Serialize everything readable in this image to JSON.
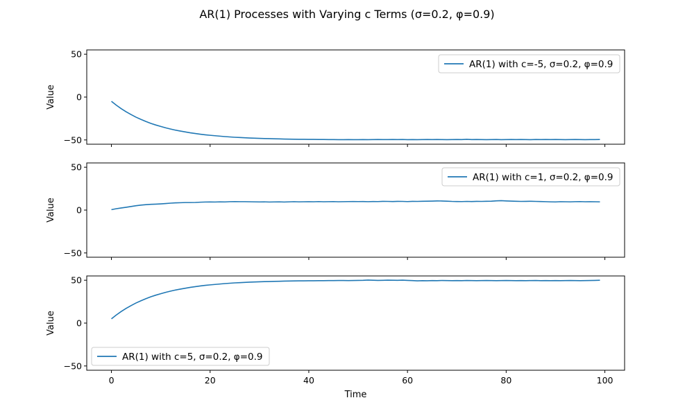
{
  "figure": {
    "title": "AR(1) Processes with Varying c Terms (σ=0.2, φ=0.9)"
  },
  "chart_data": [
    {
      "type": "line",
      "title": "",
      "xlabel": "",
      "ylabel": "Value",
      "xlim": [
        -5,
        104
      ],
      "ylim": [
        -55,
        55
      ],
      "xticks": [
        0,
        20,
        40,
        60,
        80,
        100
      ],
      "yticks": [
        -50,
        0,
        50
      ],
      "xtick_labels_visible": false,
      "legend_position": "upper right",
      "color": "#1f77b4",
      "series": [
        {
          "name": "AR(1) with c=-5, σ=0.2, φ=0.9",
          "x": [
            0,
            1,
            2,
            3,
            4,
            5,
            6,
            7,
            8,
            9,
            10,
            11,
            12,
            13,
            14,
            15,
            16,
            17,
            18,
            19,
            20,
            21,
            22,
            23,
            24,
            25,
            26,
            27,
            28,
            29,
            30,
            31,
            32,
            33,
            34,
            35,
            36,
            37,
            38,
            39,
            40,
            41,
            42,
            43,
            44,
            45,
            46,
            47,
            48,
            49,
            50,
            51,
            52,
            53,
            54,
            55,
            56,
            57,
            58,
            59,
            60,
            61,
            62,
            63,
            64,
            65,
            66,
            67,
            68,
            69,
            70,
            71,
            72,
            73,
            74,
            75,
            76,
            77,
            78,
            79,
            80,
            81,
            82,
            83,
            84,
            85,
            86,
            87,
            88,
            89,
            90,
            91,
            92,
            93,
            94,
            95,
            96,
            97,
            98,
            99
          ],
          "y": [
            -5.0,
            -9.5,
            -13.6,
            -17.2,
            -20.5,
            -23.5,
            -26.1,
            -28.5,
            -30.7,
            -32.6,
            -34.3,
            -35.9,
            -37.3,
            -38.6,
            -39.7,
            -40.7,
            -41.7,
            -42.5,
            -43.3,
            -44.0,
            -44.6,
            -45.1,
            -45.6,
            -46.1,
            -46.5,
            -46.9,
            -47.2,
            -47.5,
            -47.8,
            -48.0,
            -48.2,
            -48.4,
            -48.5,
            -48.7,
            -48.8,
            -49.0,
            -49.1,
            -49.2,
            -49.3,
            -49.3,
            -49.4,
            -49.4,
            -49.5,
            -49.5,
            -49.6,
            -49.6,
            -49.7,
            -49.7,
            -49.6,
            -49.7,
            -49.7,
            -49.6,
            -49.7,
            -49.6,
            -49.5,
            -49.6,
            -49.6,
            -49.5,
            -49.6,
            -49.5,
            -49.7,
            -49.6,
            -49.7,
            -49.6,
            -49.5,
            -49.6,
            -49.5,
            -49.6,
            -49.7,
            -49.6,
            -49.5,
            -49.6,
            -49.3,
            -49.6,
            -49.5,
            -49.6,
            -49.7,
            -49.6,
            -49.5,
            -49.7,
            -49.6,
            -49.5,
            -49.6,
            -49.5,
            -49.6,
            -49.7,
            -49.5,
            -49.6,
            -49.5,
            -49.6,
            -49.5,
            -49.6,
            -49.7,
            -49.6,
            -49.5,
            -49.6,
            -49.7,
            -49.6,
            -49.6,
            -49.5
          ]
        }
      ]
    },
    {
      "type": "line",
      "title": "",
      "xlabel": "",
      "ylabel": "Value",
      "xlim": [
        -5,
        104
      ],
      "ylim": [
        -55,
        55
      ],
      "xticks": [
        0,
        20,
        40,
        60,
        80,
        100
      ],
      "yticks": [
        -50,
        0,
        50
      ],
      "xtick_labels_visible": false,
      "legend_position": "upper right",
      "color": "#1f77b4",
      "series": [
        {
          "name": "AR(1) with c=1, σ=0.2, φ=0.9",
          "x": [
            0,
            1,
            2,
            3,
            4,
            5,
            6,
            7,
            8,
            9,
            10,
            11,
            12,
            13,
            14,
            15,
            16,
            17,
            18,
            19,
            20,
            21,
            22,
            23,
            24,
            25,
            26,
            27,
            28,
            29,
            30,
            31,
            32,
            33,
            34,
            35,
            36,
            37,
            38,
            39,
            40,
            41,
            42,
            43,
            44,
            45,
            46,
            47,
            48,
            49,
            50,
            51,
            52,
            53,
            54,
            55,
            56,
            57,
            58,
            59,
            60,
            61,
            62,
            63,
            64,
            65,
            66,
            67,
            68,
            69,
            70,
            71,
            72,
            73,
            74,
            75,
            76,
            77,
            78,
            79,
            80,
            81,
            82,
            83,
            84,
            85,
            86,
            87,
            88,
            89,
            90,
            91,
            92,
            93,
            94,
            95,
            96,
            97,
            98,
            99
          ],
          "y": [
            0.5,
            1.6,
            2.5,
            3.3,
            4.2,
            5.1,
            5.8,
            6.3,
            6.7,
            6.9,
            7.2,
            7.6,
            8.1,
            8.4,
            8.6,
            8.8,
            8.8,
            8.9,
            9.2,
            9.4,
            9.5,
            9.4,
            9.6,
            9.5,
            9.8,
            9.9,
            9.8,
            9.8,
            9.7,
            9.6,
            9.5,
            9.6,
            9.4,
            9.5,
            9.6,
            9.4,
            9.6,
            9.8,
            9.6,
            9.7,
            9.8,
            9.7,
            9.9,
            9.7,
            9.8,
            9.9,
            9.7,
            9.8,
            9.9,
            10.0,
            9.9,
            10.0,
            9.8,
            10.0,
            9.9,
            10.2,
            10.1,
            10.0,
            10.2,
            10.1,
            9.9,
            10.2,
            10.1,
            10.3,
            10.4,
            10.5,
            10.7,
            10.6,
            10.4,
            10.1,
            10.0,
            9.9,
            10.1,
            10.0,
            10.2,
            10.1,
            10.3,
            10.4,
            10.8,
            11.0,
            10.7,
            10.5,
            10.3,
            10.1,
            10.2,
            10.3,
            10.1,
            10.0,
            9.8,
            9.6,
            9.5,
            9.8,
            9.7,
            9.6,
            9.8,
            9.9,
            9.7,
            9.8,
            9.7,
            9.6
          ]
        }
      ]
    },
    {
      "type": "line",
      "title": "",
      "xlabel": "Time",
      "ylabel": "Value",
      "xlim": [
        -5,
        104
      ],
      "ylim": [
        -55,
        55
      ],
      "xticks": [
        0,
        20,
        40,
        60,
        80,
        100
      ],
      "yticks": [
        -50,
        0,
        50
      ],
      "xtick_labels_visible": true,
      "legend_position": "lower left",
      "color": "#1f77b4",
      "series": [
        {
          "name": "AR(1) with c=5, σ=0.2, φ=0.9",
          "x": [
            0,
            1,
            2,
            3,
            4,
            5,
            6,
            7,
            8,
            9,
            10,
            11,
            12,
            13,
            14,
            15,
            16,
            17,
            18,
            19,
            20,
            21,
            22,
            23,
            24,
            25,
            26,
            27,
            28,
            29,
            30,
            31,
            32,
            33,
            34,
            35,
            36,
            37,
            38,
            39,
            40,
            41,
            42,
            43,
            44,
            45,
            46,
            47,
            48,
            49,
            50,
            51,
            52,
            53,
            54,
            55,
            56,
            57,
            58,
            59,
            60,
            61,
            62,
            63,
            64,
            65,
            66,
            67,
            68,
            69,
            70,
            71,
            72,
            73,
            74,
            75,
            76,
            77,
            78,
            79,
            80,
            81,
            82,
            83,
            84,
            85,
            86,
            87,
            88,
            89,
            90,
            91,
            92,
            93,
            94,
            95,
            96,
            97,
            98,
            99
          ],
          "y": [
            5.0,
            9.5,
            13.6,
            17.2,
            20.5,
            23.5,
            26.1,
            28.5,
            30.7,
            32.6,
            34.3,
            35.9,
            37.3,
            38.6,
            39.7,
            40.7,
            41.7,
            42.5,
            43.3,
            44.0,
            44.6,
            45.1,
            45.6,
            46.1,
            46.5,
            46.9,
            47.2,
            47.5,
            47.8,
            48.0,
            48.2,
            48.4,
            48.5,
            48.7,
            48.8,
            49.0,
            49.1,
            49.2,
            49.3,
            49.3,
            49.4,
            49.4,
            49.5,
            49.5,
            49.6,
            49.6,
            49.7,
            49.7,
            49.6,
            49.7,
            49.8,
            49.9,
            50.2,
            50.0,
            49.8,
            49.9,
            50.1,
            50.0,
            49.9,
            50.1,
            49.8,
            49.6,
            49.3,
            49.5,
            49.4,
            49.6,
            49.5,
            49.7,
            49.6,
            49.5,
            49.6,
            49.5,
            49.7,
            49.6,
            49.5,
            49.6,
            49.7,
            49.6,
            49.5,
            49.6,
            49.7,
            49.6,
            49.5,
            49.6,
            49.5,
            49.6,
            49.7,
            49.5,
            49.6,
            49.5,
            49.6,
            49.5,
            49.6,
            49.7,
            49.6,
            49.5,
            49.6,
            49.7,
            49.8,
            50.0
          ]
        }
      ]
    }
  ]
}
